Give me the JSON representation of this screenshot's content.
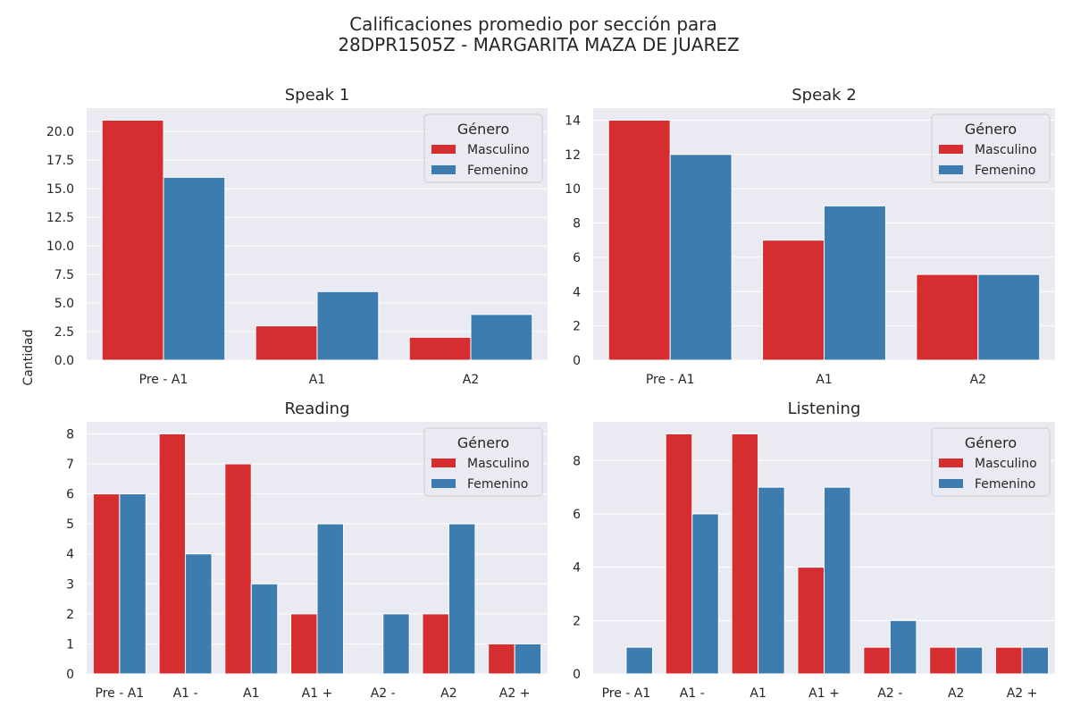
{
  "figure": {
    "title_line1": "Calificaciones promedio por sección para",
    "title_line2": "28DPR1505Z - MARGARITA MAZA DE JUAREZ",
    "ylabel": "Cantidad"
  },
  "colors": {
    "background": "#eaeaf2",
    "grid": "#ffffff",
    "masculino": "#d62d30",
    "femenino": "#3c7caf"
  },
  "chart_data": [
    {
      "type": "bar",
      "title": "Speak 1",
      "categories": [
        "Pre - A1",
        "A1",
        "A2"
      ],
      "series": [
        {
          "name": "Masculino",
          "values": [
            21,
            3,
            2
          ]
        },
        {
          "name": "Femenino",
          "values": [
            16,
            6,
            4
          ]
        }
      ],
      "ylim": [
        0,
        22.05
      ],
      "yticks": [
        0,
        2.5,
        5,
        7.5,
        10,
        12.5,
        15,
        17.5,
        20
      ],
      "ytick_labels": [
        "0.0",
        "2.5",
        "5.0",
        "7.5",
        "10.0",
        "12.5",
        "15.0",
        "17.5",
        "20.0"
      ],
      "legend_title": "Género",
      "legend_position": "top-right",
      "grid": true
    },
    {
      "type": "bar",
      "title": "Speak 2",
      "categories": [
        "Pre - A1",
        "A1",
        "A2"
      ],
      "series": [
        {
          "name": "Masculino",
          "values": [
            14,
            7,
            5
          ]
        },
        {
          "name": "Femenino",
          "values": [
            12,
            9,
            5
          ]
        }
      ],
      "ylim": [
        0,
        14.7
      ],
      "yticks": [
        0,
        2,
        4,
        6,
        8,
        10,
        12,
        14
      ],
      "ytick_labels": [
        "0",
        "2",
        "4",
        "6",
        "8",
        "10",
        "12",
        "14"
      ],
      "legend_title": "Género",
      "legend_position": "top-right",
      "grid": true
    },
    {
      "type": "bar",
      "title": "Reading",
      "categories": [
        "Pre - A1",
        "A1 -",
        "A1",
        "A1 +",
        "A2 -",
        "A2",
        "A2 +"
      ],
      "series": [
        {
          "name": "Masculino",
          "values": [
            6,
            8,
            7,
            2,
            0,
            2,
            1
          ]
        },
        {
          "name": "Femenino",
          "values": [
            6,
            4,
            3,
            5,
            2,
            5,
            1
          ]
        }
      ],
      "ylim": [
        0,
        8.4
      ],
      "yticks": [
        0,
        1,
        2,
        3,
        4,
        5,
        6,
        7,
        8
      ],
      "ytick_labels": [
        "0",
        "1",
        "2",
        "3",
        "4",
        "5",
        "6",
        "7",
        "8"
      ],
      "legend_title": "Género",
      "legend_position": "top-right",
      "grid": true
    },
    {
      "type": "bar",
      "title": "Listening",
      "categories": [
        "Pre - A1",
        "A1 -",
        "A1",
        "A1 +",
        "A2 -",
        "A2",
        "A2 +"
      ],
      "series": [
        {
          "name": "Masculino",
          "values": [
            0,
            9,
            9,
            4,
            1,
            1,
            1
          ]
        },
        {
          "name": "Femenino",
          "values": [
            1,
            6,
            7,
            7,
            2,
            1,
            1
          ]
        }
      ],
      "ylim": [
        0,
        9.45
      ],
      "yticks": [
        0,
        2,
        4,
        6,
        8
      ],
      "ytick_labels": [
        "0",
        "2",
        "4",
        "6",
        "8"
      ],
      "legend_title": "Género",
      "legend_position": "top-right",
      "grid": true
    }
  ]
}
